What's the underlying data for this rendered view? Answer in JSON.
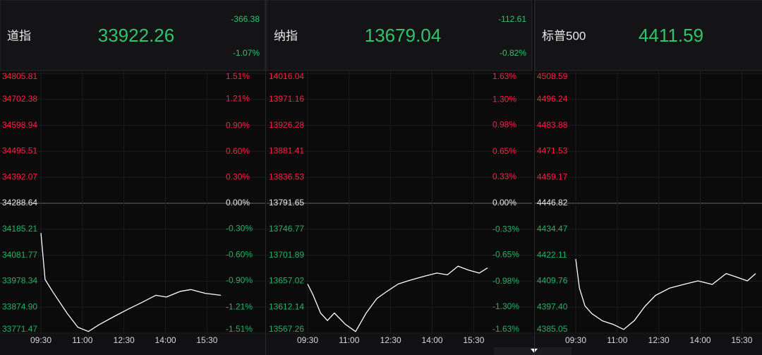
{
  "chart_data": [
    {
      "type": "line",
      "title": "道指",
      "price": 33922.26,
      "change": -366.38,
      "change_percent": "-1.07%",
      "price_color": "#2fc46c",
      "up_color": "#ff1f44",
      "down_color": "#22b363",
      "grid": true,
      "xlim": [
        0,
        390
      ],
      "xticks": [
        {
          "value": 0,
          "label": "09:30"
        },
        {
          "value": 90,
          "label": "11:00"
        },
        {
          "value": 180,
          "label": "12:30"
        },
        {
          "value": 270,
          "label": "14:00"
        },
        {
          "value": 360,
          "label": "15:30"
        }
      ],
      "ylim": [
        33771.47,
        34805.81
      ],
      "yticks": [
        34805.81,
        34702.38,
        34598.94,
        34495.51,
        34392.07,
        34288.64,
        34185.21,
        34081.77,
        33978.34,
        {
          "value": 33874.9,
          "label": "33874.90"
        },
        33771.47
      ],
      "y2lim": [
        -1.51,
        1.51
      ],
      "y2ticks": [
        {
          "value": 1.51,
          "label": "1.51%"
        },
        {
          "value": 1.21,
          "label": "1.21%"
        },
        {
          "value": 0.9,
          "label": "0.90%"
        },
        {
          "value": 0.6,
          "label": "0.60%"
        },
        {
          "value": 0.3,
          "label": "0.30%"
        },
        {
          "value": 0,
          "label": "0.00%"
        },
        {
          "value": -0.3,
          "label": "-0.30%"
        },
        {
          "value": -0.6,
          "label": "-0.60%"
        },
        {
          "value": -0.9,
          "label": "-0.90%"
        },
        {
          "value": -1.21,
          "label": "-1.21%"
        },
        {
          "value": -1.51,
          "label": "-1.51%"
        }
      ],
      "x": [
        0,
        9,
        26,
        57,
        80,
        103,
        126,
        157,
        187,
        218,
        249,
        272,
        302,
        325,
        356,
        390
      ],
      "series": [
        {
          "color": "#ffffff",
          "values": [
            34170,
            33985,
            33935,
            33850,
            33795,
            33778,
            33805,
            33836,
            33865,
            33893,
            33922,
            33915,
            33938,
            33945,
            33930,
            33922
          ]
        }
      ]
    },
    {
      "type": "line",
      "title": "纳指",
      "price": 13679.04,
      "change": -112.61,
      "change_percent": "-0.82%",
      "price_color": "#2fc46c",
      "up_color": "#ff1f44",
      "down_color": "#22b363",
      "grid": true,
      "xlim": [
        0,
        390
      ],
      "xticks": [
        {
          "value": 0,
          "label": "09:30"
        },
        {
          "value": 90,
          "label": "11:00"
        },
        {
          "value": 180,
          "label": "12:30"
        },
        {
          "value": 270,
          "label": "14:00"
        },
        {
          "value": 360,
          "label": "15:30"
        }
      ],
      "ylim": [
        13567.26,
        14016.04
      ],
      "yticks": [
        14016.04,
        13971.16,
        13926.28,
        13881.41,
        13836.53,
        13791.65,
        13746.77,
        13701.89,
        13657.02,
        13612.14,
        13567.26
      ],
      "y2lim": [
        -1.63,
        1.63
      ],
      "y2ticks": [
        {
          "value": 1.63,
          "label": "1.63%"
        },
        {
          "value": 1.3,
          "label": "1.30%"
        },
        {
          "value": 0.98,
          "label": "0.98%"
        },
        {
          "value": 0.65,
          "label": "0.65%"
        },
        {
          "value": 0.33,
          "label": "0.33%"
        },
        {
          "value": 0,
          "label": "0.00%"
        },
        {
          "value": -0.33,
          "label": "-0.33%"
        },
        {
          "value": -0.65,
          "label": "-0.65%"
        },
        {
          "value": -0.98,
          "label": "-0.98%"
        },
        {
          "value": -1.3,
          "label": "-1.30%"
        },
        {
          "value": -1.63,
          "label": "-1.63%"
        }
      ],
      "x": [
        0,
        12,
        28,
        43,
        58,
        81,
        104,
        127,
        150,
        173,
        196,
        219,
        250,
        280,
        303,
        326,
        349,
        372,
        390
      ],
      "series": [
        {
          "color": "#ffffff",
          "values": [
            13652,
            13633,
            13602,
            13589,
            13602,
            13583,
            13570,
            13602,
            13627,
            13640,
            13652,
            13658,
            13665,
            13671,
            13668,
            13683,
            13676,
            13671,
            13680
          ]
        }
      ]
    },
    {
      "type": "line",
      "title": "标普500",
      "price": 4411.59,
      "price_color": "#2fc46c",
      "up_color": "#ff1f44",
      "down_color": "#22b363",
      "grid": true,
      "xlim": [
        0,
        390
      ],
      "xticks": [
        {
          "value": 0,
          "label": "09:30"
        },
        {
          "value": 90,
          "label": "11:00"
        },
        {
          "value": 180,
          "label": "12:30"
        },
        {
          "value": 270,
          "label": "14:00"
        },
        {
          "value": 360,
          "label": "15:30"
        }
      ],
      "ylim": [
        4385.05,
        4508.59
      ],
      "yticks": [
        4508.59,
        4496.24,
        4483.88,
        4471.53,
        4459.17,
        4446.82,
        4434.47,
        4422.11,
        4409.76,
        {
          "value": 4397.4,
          "label": "4397.40"
        },
        4385.05
      ],
      "x": [
        0,
        8,
        20,
        35,
        58,
        81,
        104,
        127,
        150,
        173,
        204,
        234,
        265,
        296,
        326,
        349,
        372,
        390
      ],
      "series": [
        {
          "color": "#ffffff",
          "values": [
            4420.3,
            4406.5,
            4398,
            4394.3,
            4390.9,
            4389.2,
            4386.8,
            4391,
            4397.8,
            4403,
            4406.5,
            4408.2,
            4409.9,
            4408.2,
            4413.4,
            4411.7,
            4409.9,
            4413.4
          ]
        }
      ]
    }
  ]
}
